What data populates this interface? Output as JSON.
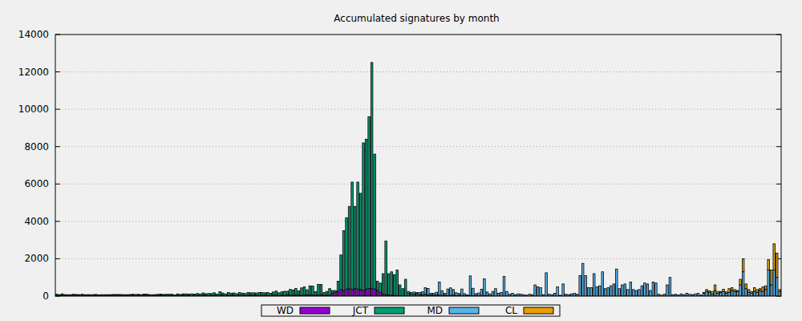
{
  "chart_data": {
    "type": "bar",
    "title": "Accumulated signatures by month",
    "stacked": true,
    "grid": true,
    "legend": "bottom",
    "tick_labels": "y",
    "ylim": [
      0,
      14000
    ],
    "yticks": [
      0,
      2000,
      4000,
      6000,
      8000,
      10000,
      12000,
      14000
    ],
    "categories": [
      null,
      null,
      null,
      null,
      null,
      null,
      null,
      null,
      null,
      null,
      null,
      null,
      null,
      null,
      null,
      null,
      null,
      null,
      null,
      null,
      null,
      null,
      null,
      null,
      null,
      null,
      null,
      null,
      null,
      null,
      null,
      null,
      null,
      null,
      null,
      null,
      null,
      null,
      null,
      null,
      null,
      null,
      null,
      null,
      null,
      null,
      null,
      null,
      null,
      null,
      null,
      null,
      null,
      null,
      null,
      null,
      null,
      null,
      null,
      null,
      null,
      null,
      null,
      null,
      null,
      null,
      null,
      null,
      null,
      null,
      null,
      null,
      null,
      null,
      null,
      null,
      null,
      null,
      null,
      null,
      null,
      null,
      null,
      null,
      null,
      null,
      null,
      null,
      null,
      null,
      null,
      null,
      null,
      null,
      null,
      null,
      null,
      null,
      null,
      null,
      null,
      null,
      null,
      null,
      null,
      null,
      null,
      null,
      null,
      null,
      null,
      null,
      null,
      null,
      null,
      null,
      null,
      null,
      null,
      null,
      null,
      null,
      null,
      null,
      null,
      null,
      null,
      null,
      null,
      null,
      null,
      null,
      null,
      null,
      null,
      null,
      null,
      null,
      null,
      null,
      null,
      null,
      null,
      null,
      null,
      null,
      null,
      null,
      null,
      null,
      null,
      null,
      null,
      null,
      null,
      null,
      null,
      null,
      null,
      null,
      null,
      null,
      null,
      null,
      null,
      null,
      null,
      null,
      null,
      null,
      null,
      null,
      null,
      null,
      null,
      null,
      null,
      null,
      null,
      null,
      null,
      null,
      null,
      null,
      null,
      null,
      null,
      null,
      null,
      null,
      null,
      null,
      null,
      null,
      null,
      null,
      null,
      null,
      null,
      null,
      null,
      null,
      null,
      null,
      null,
      null,
      null,
      null,
      null,
      null,
      null,
      null,
      null,
      null,
      null,
      null,
      null,
      null,
      null,
      null,
      null,
      null,
      null,
      null,
      null,
      null,
      null,
      null,
      null,
      null,
      null,
      null,
      null,
      null,
      null,
      null,
      null,
      null,
      null,
      null,
      null,
      null,
      null,
      null,
      null,
      null,
      null,
      null,
      null,
      null,
      null,
      null,
      null,
      null,
      null,
      null,
      null,
      null
    ],
    "series": [
      {
        "name": "WD",
        "color": "#9400d3",
        "values": [
          50,
          40,
          60,
          50,
          30,
          40,
          50,
          60,
          40,
          50,
          40,
          50,
          30,
          40,
          60,
          50,
          40,
          30,
          50,
          40,
          50,
          40,
          60,
          30,
          40,
          50,
          40,
          60,
          30,
          50,
          40,
          60,
          50,
          40,
          30,
          50,
          40,
          60,
          50,
          40,
          50,
          40,
          30,
          50,
          40,
          60,
          40,
          50,
          30,
          40,
          40,
          30,
          50,
          40,
          30,
          40,
          50,
          30,
          40,
          50,
          30,
          40,
          50,
          40,
          30,
          50,
          40,
          30,
          40,
          50,
          40,
          50,
          30,
          40,
          50,
          40,
          30,
          50,
          40,
          30,
          50,
          40,
          60,
          50,
          40,
          60,
          50,
          40,
          50,
          60,
          50,
          60,
          40,
          50,
          60,
          40,
          50,
          50,
          150,
          200,
          250,
          350,
          300,
          380,
          400,
          350,
          420,
          380,
          350,
          300,
          380,
          400,
          420,
          380,
          300,
          200,
          100,
          80,
          60,
          50,
          40,
          30,
          20,
          10,
          0,
          0,
          0,
          0,
          0,
          0,
          0,
          0,
          0,
          0,
          0,
          0,
          0,
          0,
          0,
          0,
          0,
          0,
          0,
          0,
          0,
          0,
          0,
          0,
          0,
          0,
          0,
          0,
          0,
          0,
          0,
          0,
          0,
          0,
          0,
          0,
          0,
          0,
          0,
          0,
          0,
          0,
          0,
          0,
          0,
          0,
          0,
          0,
          0,
          0,
          0,
          0,
          0,
          0,
          0,
          0,
          0,
          0,
          0,
          0,
          0,
          0,
          0,
          0,
          0,
          0,
          0,
          0,
          0,
          0,
          0,
          0,
          0,
          0,
          0,
          0,
          0,
          0,
          0,
          0,
          0,
          0,
          0,
          0,
          0,
          0,
          0,
          0,
          0,
          0,
          0,
          0,
          0,
          0,
          0,
          0,
          0,
          0,
          0,
          0,
          0,
          0,
          0,
          0,
          0,
          0,
          0,
          0,
          0,
          0,
          0,
          0,
          0,
          0,
          0,
          0,
          0,
          0,
          0,
          0,
          0,
          0,
          0,
          0,
          0,
          0,
          0,
          0,
          0,
          0,
          0,
          0,
          0,
          0
        ]
      },
      {
        "name": "JCT",
        "color": "#009e73",
        "values": [
          50,
          40,
          60,
          30,
          50,
          40,
          50,
          30,
          40,
          50,
          40,
          30,
          50,
          40,
          30,
          20,
          40,
          50,
          30,
          40,
          40,
          50,
          30,
          60,
          40,
          30,
          50,
          40,
          60,
          50,
          40,
          50,
          60,
          40,
          50,
          30,
          60,
          50,
          40,
          60,
          50,
          60,
          40,
          70,
          50,
          60,
          80,
          60,
          90,
          70,
          100,
          80,
          120,
          90,
          110,
          100,
          130,
          80,
          200,
          120,
          90,
          150,
          110,
          130,
          100,
          140,
          120,
          110,
          150,
          130,
          140,
          120,
          160,
          150,
          130,
          150,
          120,
          170,
          230,
          150,
          180,
          220,
          200,
          310,
          290,
          350,
          230,
          400,
          450,
          280,
          500,
          480,
          200,
          580,
          560,
          150,
          200,
          350,
          150,
          100,
          550,
          1850,
          3200,
          3820,
          4400,
          5750,
          4380,
          5720,
          5150,
          7900,
          8020,
          9200,
          12080,
          7220,
          500,
          500,
          1100,
          2870,
          1140,
          1250,
          1110,
          1370,
          580,
          390,
          900,
          150,
          120,
          100,
          130,
          90,
          80,
          100,
          60,
          70,
          50,
          60,
          50,
          40,
          50,
          30,
          40,
          50,
          30,
          40,
          30,
          30,
          20,
          30,
          20,
          30,
          20,
          20,
          30,
          20,
          20,
          0,
          0,
          0,
          0,
          0,
          0,
          0,
          0,
          0,
          0,
          0,
          0,
          0,
          0,
          0,
          0,
          0,
          0,
          0,
          0,
          0,
          0,
          0,
          0,
          0,
          0,
          0,
          0,
          0,
          0,
          0,
          0,
          0,
          0,
          0,
          0,
          0,
          0,
          0,
          0,
          0,
          0,
          0,
          0,
          0,
          0,
          0,
          0,
          0,
          0,
          0,
          0,
          0,
          0,
          0,
          0,
          0,
          0,
          0,
          0,
          0,
          0,
          0,
          0,
          0,
          0,
          0,
          0,
          0,
          0,
          0,
          0,
          0,
          0,
          0,
          0,
          0,
          0,
          0,
          0,
          0,
          0,
          0,
          0,
          0,
          0,
          0,
          0,
          0,
          0,
          0,
          0,
          0,
          0,
          0,
          0,
          0,
          0,
          0,
          0,
          0,
          0,
          0
        ]
      },
      {
        "name": "MD",
        "color": "#56b4e9",
        "values": [
          0,
          0,
          0,
          0,
          0,
          0,
          0,
          0,
          0,
          0,
          0,
          0,
          0,
          0,
          0,
          0,
          0,
          0,
          0,
          0,
          0,
          0,
          0,
          0,
          0,
          0,
          0,
          0,
          0,
          0,
          0,
          0,
          0,
          0,
          0,
          0,
          0,
          0,
          0,
          0,
          0,
          0,
          0,
          0,
          0,
          0,
          0,
          0,
          0,
          0,
          0,
          0,
          0,
          0,
          0,
          0,
          0,
          0,
          0,
          0,
          0,
          0,
          0,
          0,
          0,
          0,
          0,
          0,
          0,
          0,
          0,
          0,
          0,
          0,
          0,
          0,
          0,
          0,
          0,
          0,
          0,
          0,
          0,
          0,
          0,
          0,
          0,
          0,
          0,
          0,
          0,
          0,
          0,
          0,
          0,
          0,
          0,
          0,
          0,
          0,
          0,
          0,
          0,
          0,
          0,
          0,
          0,
          0,
          0,
          0,
          0,
          0,
          0,
          0,
          0,
          0,
          0,
          0,
          0,
          0,
          0,
          0,
          0,
          0,
          0,
          100,
          80,
          120,
          60,
          100,
          150,
          350,
          350,
          80,
          100,
          150,
          700,
          250,
          100,
          350,
          400,
          300,
          150,
          100,
          350,
          100,
          50,
          1050,
          400,
          100,
          150,
          350,
          900,
          200,
          100,
          250,
          400,
          150,
          200,
          1050,
          250,
          100,
          150,
          80,
          120,
          100,
          80,
          50,
          100,
          80,
          600,
          500,
          450,
          80,
          1250,
          100,
          80,
          150,
          500,
          50,
          650,
          100,
          80,
          120,
          150,
          100,
          1100,
          1750,
          1100,
          450,
          450,
          1200,
          500,
          550,
          1300,
          400,
          450,
          550,
          650,
          1450,
          400,
          600,
          650,
          350,
          750,
          350,
          300,
          350,
          550,
          700,
          650,
          300,
          750,
          700,
          100,
          50,
          100,
          600,
          1000,
          80,
          100,
          60,
          120,
          80,
          150,
          100,
          80,
          120,
          150,
          60,
          150,
          250,
          200,
          100,
          300,
          150,
          200,
          250,
          150,
          200,
          300,
          250,
          250,
          600,
          1300,
          400,
          200,
          150,
          250,
          200,
          300,
          250,
          350,
          1400,
          600,
          1400,
          1000,
          250
        ]
      },
      {
        "name": "CL",
        "color": "#e69f00",
        "values": [
          0,
          0,
          0,
          0,
          0,
          0,
          0,
          0,
          0,
          0,
          0,
          0,
          0,
          0,
          0,
          0,
          0,
          0,
          0,
          0,
          0,
          0,
          0,
          0,
          0,
          0,
          0,
          0,
          0,
          0,
          0,
          0,
          0,
          0,
          0,
          0,
          0,
          0,
          0,
          0,
          0,
          0,
          0,
          0,
          0,
          0,
          0,
          0,
          0,
          0,
          0,
          0,
          0,
          0,
          0,
          0,
          0,
          0,
          0,
          0,
          0,
          0,
          0,
          0,
          0,
          0,
          0,
          0,
          0,
          0,
          0,
          0,
          0,
          0,
          0,
          0,
          0,
          0,
          0,
          0,
          0,
          0,
          0,
          0,
          0,
          0,
          0,
          0,
          0,
          0,
          0,
          0,
          0,
          0,
          0,
          0,
          0,
          0,
          0,
          0,
          0,
          0,
          0,
          0,
          0,
          0,
          0,
          0,
          0,
          0,
          0,
          0,
          0,
          0,
          0,
          0,
          0,
          0,
          0,
          0,
          0,
          0,
          0,
          0,
          0,
          0,
          0,
          0,
          0,
          0,
          0,
          0,
          0,
          0,
          0,
          0,
          0,
          0,
          0,
          0,
          0,
          0,
          0,
          0,
          0,
          0,
          0,
          0,
          0,
          0,
          0,
          0,
          0,
          0,
          0,
          0,
          0,
          0,
          0,
          0,
          0,
          0,
          0,
          0,
          0,
          0,
          0,
          0,
          0,
          0,
          0,
          0,
          0,
          0,
          0,
          0,
          0,
          0,
          0,
          0,
          0,
          0,
          0,
          0,
          0,
          0,
          0,
          0,
          0,
          0,
          0,
          0,
          0,
          0,
          0,
          0,
          0,
          0,
          0,
          0,
          0,
          0,
          0,
          0,
          0,
          0,
          0,
          0,
          0,
          0,
          0,
          0,
          0,
          0,
          0,
          0,
          0,
          0,
          0,
          0,
          0,
          0,
          0,
          0,
          0,
          0,
          0,
          0,
          0,
          0,
          50,
          100,
          80,
          150,
          300,
          100,
          50,
          120,
          80,
          200,
          150,
          100,
          50,
          300,
          700,
          250,
          150,
          100,
          200,
          150,
          100,
          250,
          200,
          550,
          800,
          1400,
          1300,
          100
        ]
      }
    ]
  }
}
